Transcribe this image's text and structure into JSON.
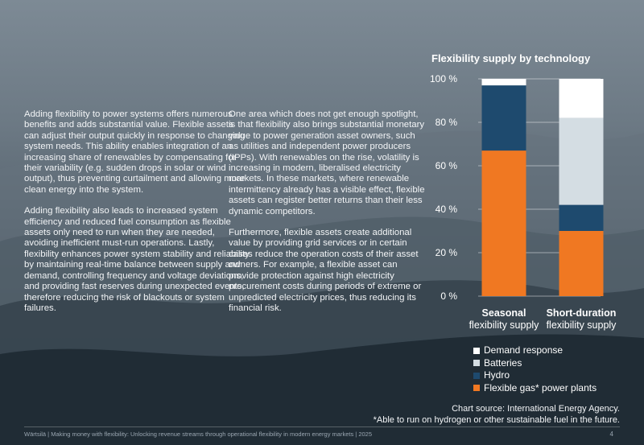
{
  "left_column": {
    "para1": "Adding flexibility to power systems offers numerous benefits and adds substantial value. Flexible assets can adjust their output quickly in response to changing system needs. This ability enables integration of an increasing share of renewables by compensating for their variability (e.g. sudden drops in solar or wind output), thus preventing curtailment and allowing more clean energy into the system.",
    "para2": "Adding flexibility also leads to increased system efficiency and reduced fuel consumption as flexible assets only need to run when they are needed, avoiding inefficient must-run operations. Lastly, flexibility enhances power system stability and reliability by maintaining real-time balance between supply and demand, controlling frequency and voltage deviations, and providing fast reserves during unexpected events, therefore reducing the risk of blackouts or system failures."
  },
  "right_column": {
    "para1": "One area which does not get enough spotlight, is that flexibility also brings substantial monetary value to power generation asset owners, such as utilities and independent power producers (IPPs). With renewables on the rise, volatility is increasing in modern, liberalised electricity markets. In these markets, where renewable intermittency already has a visible effect, flexible assets can register better returns than their less dynamic competitors.",
    "para2": "Furthermore, flexible assets create additional value by providing grid services or in certain cases reduce the operation costs of their asset owners. For example, a flexible asset can provide protection against high electricity procurement costs during periods of extreme or unpredicted electricity prices, thus reducing its financial risk."
  },
  "chart_data": {
    "type": "bar",
    "stacked": true,
    "title": "Flexibility supply by technology",
    "categories": [
      {
        "bold": "Seasonal",
        "normal": "flexibility supply"
      },
      {
        "bold": "Short-duration",
        "normal": "flexibility supply"
      }
    ],
    "yticks": [
      "0 %",
      "20 %",
      "40 %",
      "60 %",
      "80 %",
      "100 %"
    ],
    "ylim": [
      0,
      100
    ],
    "series": [
      {
        "name": "Flexible gas* power plants",
        "color": "#f07822",
        "values": [
          67,
          30
        ]
      },
      {
        "name": "Hydro",
        "color": "#1e4a6e",
        "values": [
          30,
          12
        ]
      },
      {
        "name": "Batteries",
        "color": "#d4dde3",
        "values": [
          0,
          40
        ]
      },
      {
        "name": "Demand response",
        "color": "#ffffff",
        "values": [
          3,
          18
        ]
      }
    ],
    "legend_position": "bottom",
    "grid": true
  },
  "legend_order": [
    "Demand response",
    "Batteries",
    "Hydro",
    "Flexible gas* power plants"
  ],
  "source": {
    "line1": "Chart source: International Energy Agency.",
    "line2": "*Able to run on hydrogen or other sustainable fuel in the future."
  },
  "footer": {
    "text": "Wärtsilä | Making money with flexibility: Unlocking revenue streams through operational flexibility in modern energy markets | 2025",
    "page": "4"
  }
}
